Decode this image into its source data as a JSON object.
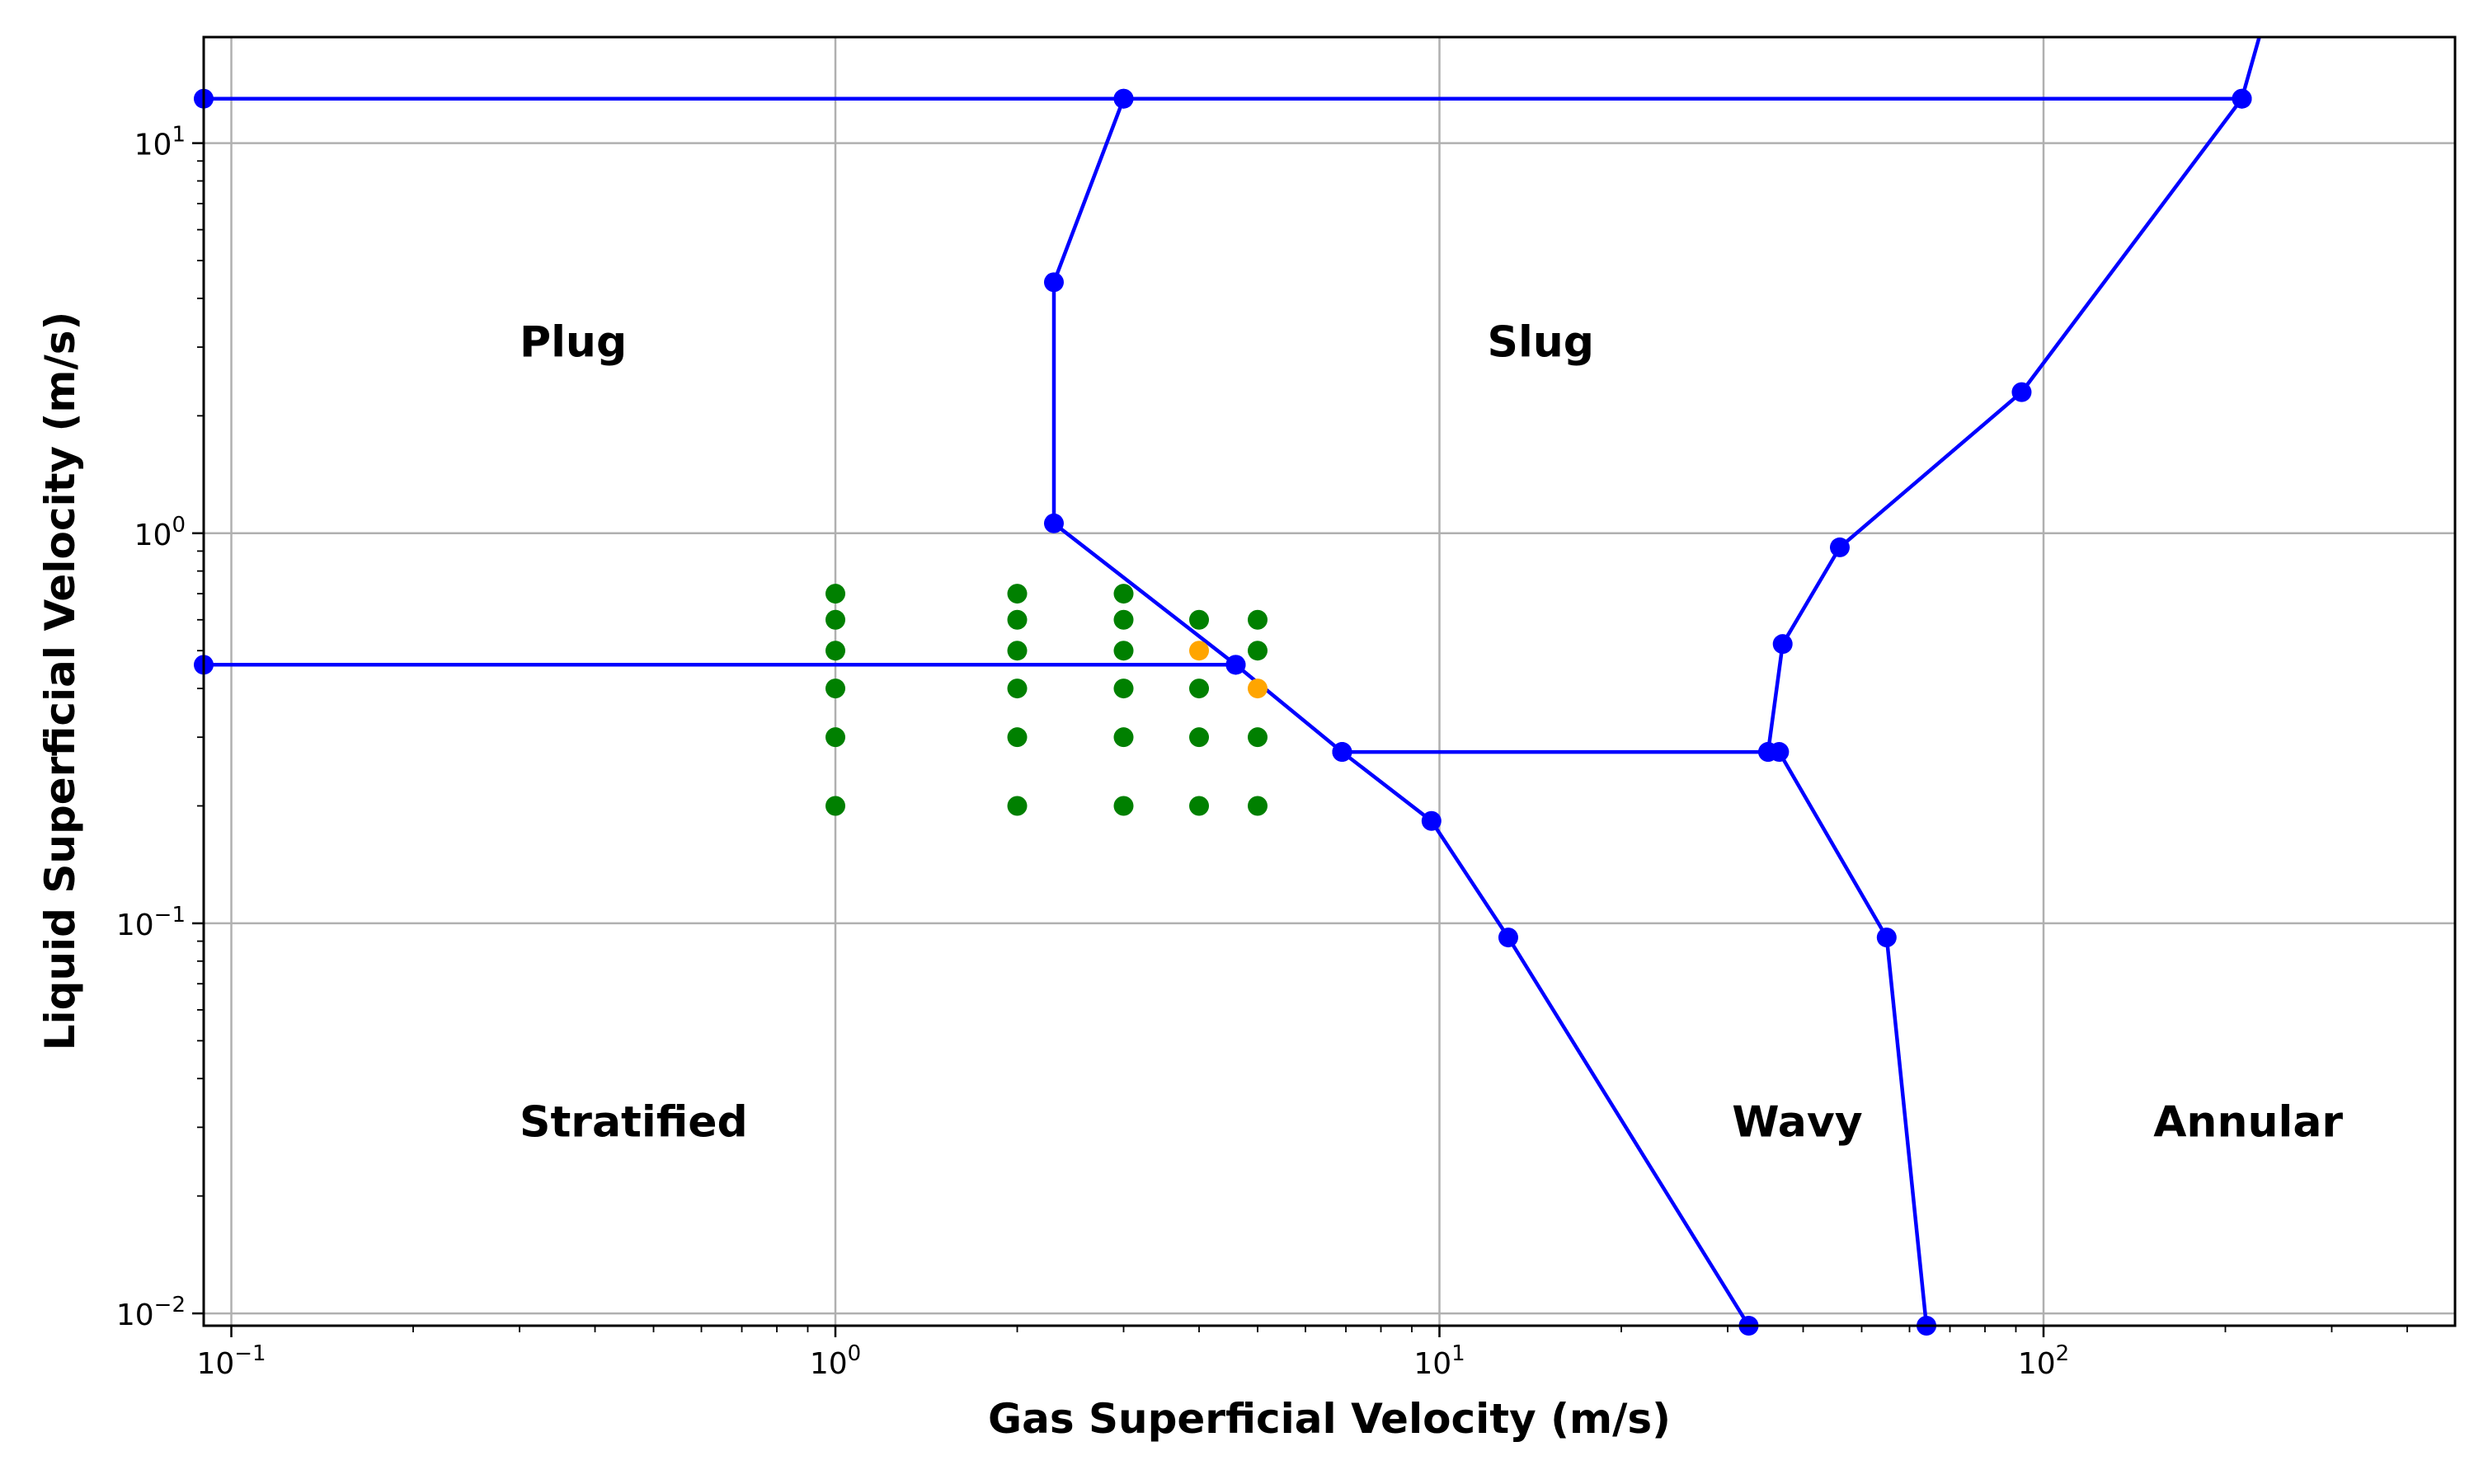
{
  "chart_data": {
    "type": "scatter",
    "title": "",
    "xlabel": "Gas Superficial Velocity (m/s)",
    "ylabel": "Liquid Superficial Velocity (m/s)",
    "xscale": "log",
    "yscale": "log",
    "xlim": [
      0.09,
      480
    ],
    "ylim": [
      0.0093,
      18.7
    ],
    "grid": true,
    "x_ticks": [
      {
        "value": 0.1,
        "base": "10",
        "exp": "−1"
      },
      {
        "value": 1,
        "base": "10",
        "exp": "0"
      },
      {
        "value": 10,
        "base": "10",
        "exp": "1"
      },
      {
        "value": 100,
        "base": "10",
        "exp": "2"
      }
    ],
    "y_ticks": [
      {
        "value": 0.01,
        "base": "10",
        "exp": "−2"
      },
      {
        "value": 0.1,
        "base": "10",
        "exp": "−1"
      },
      {
        "value": 1,
        "base": "10",
        "exp": "0"
      },
      {
        "value": 10,
        "base": "10",
        "exp": "1"
      }
    ],
    "region_labels": [
      {
        "text": "Plug",
        "x": 0.3,
        "y": 3.1
      },
      {
        "text": "Slug",
        "x": 12.0,
        "y": 3.1
      },
      {
        "text": "Stratified",
        "x": 0.3,
        "y": 0.031
      },
      {
        "text": "Wavy",
        "x": 30.5,
        "y": 0.031
      },
      {
        "text": "Annular",
        "x": 152,
        "y": 0.031
      }
    ],
    "boundaries": [
      {
        "color": "#0000ff",
        "x": [
          0.09,
          3.0,
          213
        ],
        "y": [
          13.0,
          13.0,
          13.0
        ]
      },
      {
        "color": "#0000ff",
        "x": [
          0.09,
          4.6
        ],
        "y": [
          0.46,
          0.46
        ]
      },
      {
        "color": "#0000ff",
        "x": [
          3.0,
          2.3,
          2.3,
          4.6,
          6.9,
          9.7,
          13.0,
          32.5
        ],
        "y": [
          13.0,
          4.4,
          1.06,
          0.46,
          0.275,
          0.183,
          0.092,
          0.0093
        ]
      },
      {
        "color": "#0000ff",
        "x": [
          6.9,
          35.0
        ],
        "y": [
          0.275,
          0.275
        ]
      },
      {
        "color": "#0000ff",
        "x": [
          240,
          213,
          92,
          46,
          37,
          35.0,
          36.5,
          55,
          64
        ],
        "y": [
          25,
          13.0,
          2.3,
          0.92,
          0.52,
          0.275,
          0.275,
          0.092,
          0.0093
        ]
      }
    ],
    "test_points": {
      "color": "#008000",
      "x": [
        1,
        1,
        1,
        1,
        1,
        1,
        2,
        2,
        2,
        2,
        2,
        2,
        3,
        3,
        3,
        3,
        3,
        3,
        4,
        4,
        4,
        4,
        5,
        5,
        5,
        5
      ],
      "y": [
        0.7,
        0.6,
        0.5,
        0.4,
        0.3,
        0.2,
        0.7,
        0.6,
        0.5,
        0.4,
        0.3,
        0.2,
        0.7,
        0.6,
        0.5,
        0.4,
        0.3,
        0.2,
        0.6,
        0.4,
        0.3,
        0.2,
        0.6,
        0.5,
        0.3,
        0.2
      ]
    },
    "transition_points": {
      "color": "#ffa500",
      "x": [
        4,
        5
      ],
      "y": [
        0.5,
        0.4
      ]
    }
  }
}
